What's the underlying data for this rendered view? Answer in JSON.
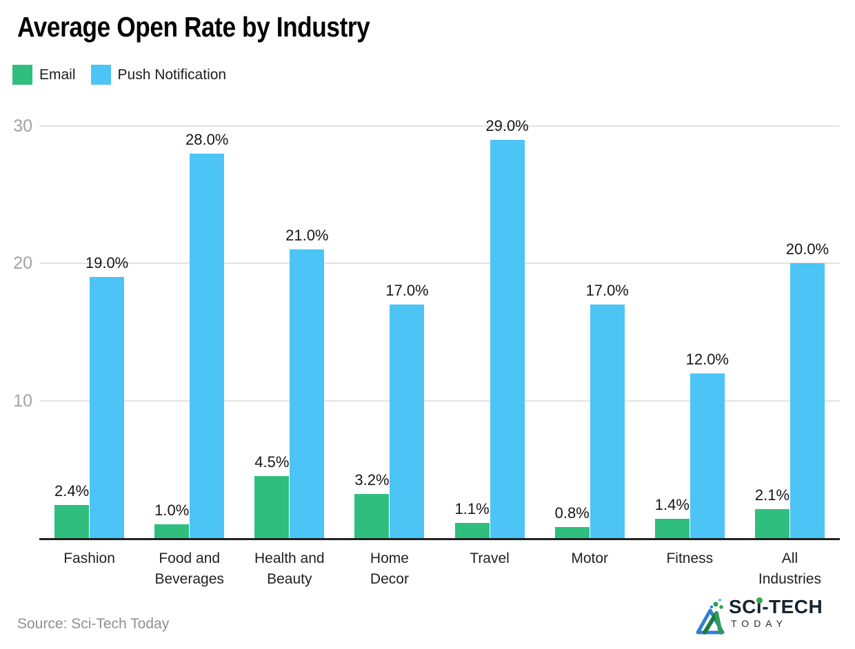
{
  "title": "Average Open Rate by Industry",
  "legend": {
    "items": [
      {
        "label": "Email",
        "color": "#2fbe7e"
      },
      {
        "label": "Push Notification",
        "color": "#4cc4f5"
      }
    ]
  },
  "source": "Source: Sci-Tech Today",
  "logo": {
    "part1": "SC",
    "part2": "i",
    "part3": "-TECH",
    "line2": "TODAY"
  },
  "chart_data": {
    "type": "bar",
    "title": "Average Open Rate by Industry",
    "categories": [
      "Fashion",
      "Food and Beverages",
      "Health and Beauty",
      "Home Decor",
      "Travel",
      "Motor",
      "Fitness",
      "All Industries"
    ],
    "category_display": [
      "Fashion",
      "Food and\nBeverages",
      "Health and\nBeauty",
      "Home\nDecor",
      "Travel",
      "Motor",
      "Fitness",
      "All\nIndustries"
    ],
    "series": [
      {
        "name": "Email",
        "color": "#2fbe7e",
        "values": [
          2.4,
          1.0,
          4.5,
          3.2,
          1.1,
          0.8,
          1.4,
          2.1
        ],
        "labels": [
          "2.4%",
          "1.0%",
          "4.5%",
          "3.2%",
          "1.1%",
          "0.8%",
          "1.4%",
          "2.1%"
        ]
      },
      {
        "name": "Push Notification",
        "color": "#4cc4f5",
        "values": [
          19.0,
          28.0,
          21.0,
          17.0,
          29.0,
          17.0,
          12.0,
          20.0
        ],
        "labels": [
          "19.0%",
          "28.0%",
          "21.0%",
          "17.0%",
          "29.0%",
          "17.0%",
          "12.0%",
          "20.0%"
        ]
      }
    ],
    "xlabel": "",
    "ylabel": "",
    "unit": "%",
    "ylim": [
      0,
      30
    ],
    "yticks": [
      10,
      20,
      30
    ],
    "grid": "horizontal-light",
    "gridline_color": "#e2e2e2",
    "axis_line_color": "#202020",
    "legend_position": "top-left"
  }
}
